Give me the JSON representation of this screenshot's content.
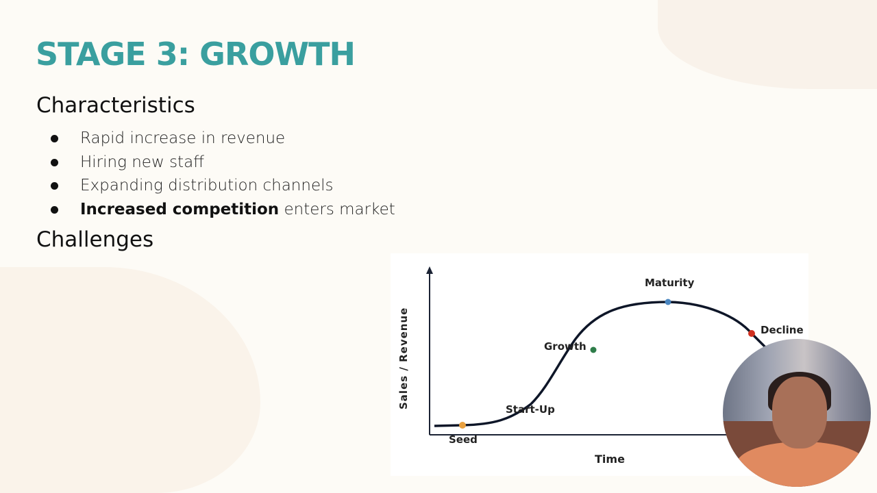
{
  "slide": {
    "title": "STAGE 3: GROWTH",
    "characteristics_heading": "Characteristics",
    "bullets": [
      {
        "bold": "",
        "text": "Rapid increase in revenue"
      },
      {
        "bold": "",
        "text": "Hiring new staff"
      },
      {
        "bold": "",
        "text": "Expanding distribution channels"
      },
      {
        "bold": "Increased competition",
        "text": " enters market"
      }
    ],
    "challenges_heading": "Challenges",
    "title_color": "#3a9f9f"
  },
  "diagram": {
    "y_axis_label": "Sales / Revenue",
    "x_axis_label": "Time",
    "stages": [
      {
        "label": "Seed",
        "color": "#e8a040"
      },
      {
        "label": "Start-Up",
        "color": ""
      },
      {
        "label": "Growth",
        "color": "#2e7d4a"
      },
      {
        "label": "Maturity",
        "color": "#4a86c0"
      },
      {
        "label": "Decline",
        "color": "#d03020"
      }
    ]
  },
  "webcam": {
    "icon": "presenter-video"
  }
}
